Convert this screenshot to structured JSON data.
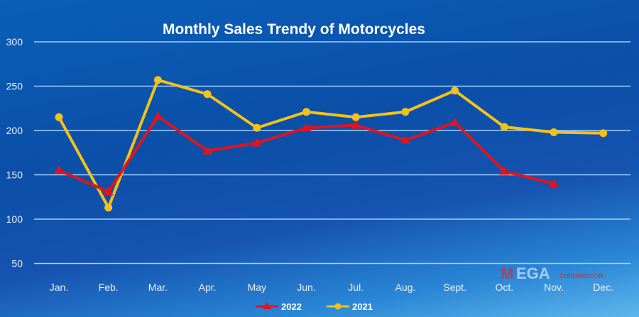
{
  "chart_data": {
    "type": "line",
    "title": "Monthly Sales Trendy of Motorcycles",
    "categories": [
      "Jan.",
      "Feb.",
      "Mar.",
      "Apr.",
      "May",
      "Jun.",
      "Jul.",
      "Aug.",
      "Sept.",
      "Oct.",
      "Nov.",
      "Dec."
    ],
    "ylim": [
      50,
      300
    ],
    "yticks": [
      50,
      100,
      150,
      200,
      250,
      300
    ],
    "grid": true,
    "legend_position": "bottom",
    "series": [
      {
        "name": "2022",
        "color": "#e0141e",
        "marker": "triangle",
        "values": [
          155,
          131,
          216,
          177,
          186,
          203,
          206,
          189,
          209,
          154,
          140,
          null
        ]
      },
      {
        "name": "2021",
        "color": "#f2c21a",
        "marker": "circle",
        "values": [
          215,
          113,
          257,
          241,
          203,
          221,
          215,
          221,
          245,
          204,
          198,
          197
        ]
      }
    ]
  },
  "watermark": {
    "logo": "MEGA",
    "sub": "CHINAMOTOR"
  }
}
